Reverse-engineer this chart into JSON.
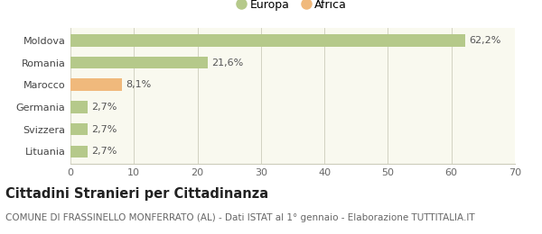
{
  "categories": [
    "Lituania",
    "Svizzera",
    "Germania",
    "Marocco",
    "Romania",
    "Moldova"
  ],
  "values": [
    2.7,
    2.7,
    2.7,
    8.1,
    21.6,
    62.2
  ],
  "labels": [
    "2,7%",
    "2,7%",
    "2,7%",
    "8,1%",
    "21,6%",
    "62,2%"
  ],
  "colors": [
    "#b5c98a",
    "#b5c98a",
    "#b5c98a",
    "#f0b97c",
    "#b5c98a",
    "#b5c98a"
  ],
  "legend": [
    {
      "label": "Europa",
      "color": "#b5c98a"
    },
    {
      "label": "Africa",
      "color": "#f0b97c"
    }
  ],
  "xlim": [
    0,
    70
  ],
  "xticks": [
    0,
    10,
    20,
    30,
    40,
    50,
    60,
    70
  ],
  "title": "Cittadini Stranieri per Cittadinanza",
  "subtitle": "COMUNE DI FRASSINELLO MONFERRATO (AL) - Dati ISTAT al 1° gennaio - Elaborazione TUTTITALIA.IT",
  "bg_color": "#ffffff",
  "plot_bg_color": "#f9f9ef",
  "bar_height": 0.55,
  "title_fontsize": 10.5,
  "subtitle_fontsize": 7.5,
  "label_fontsize": 8,
  "tick_fontsize": 8,
  "ytick_fontsize": 8
}
